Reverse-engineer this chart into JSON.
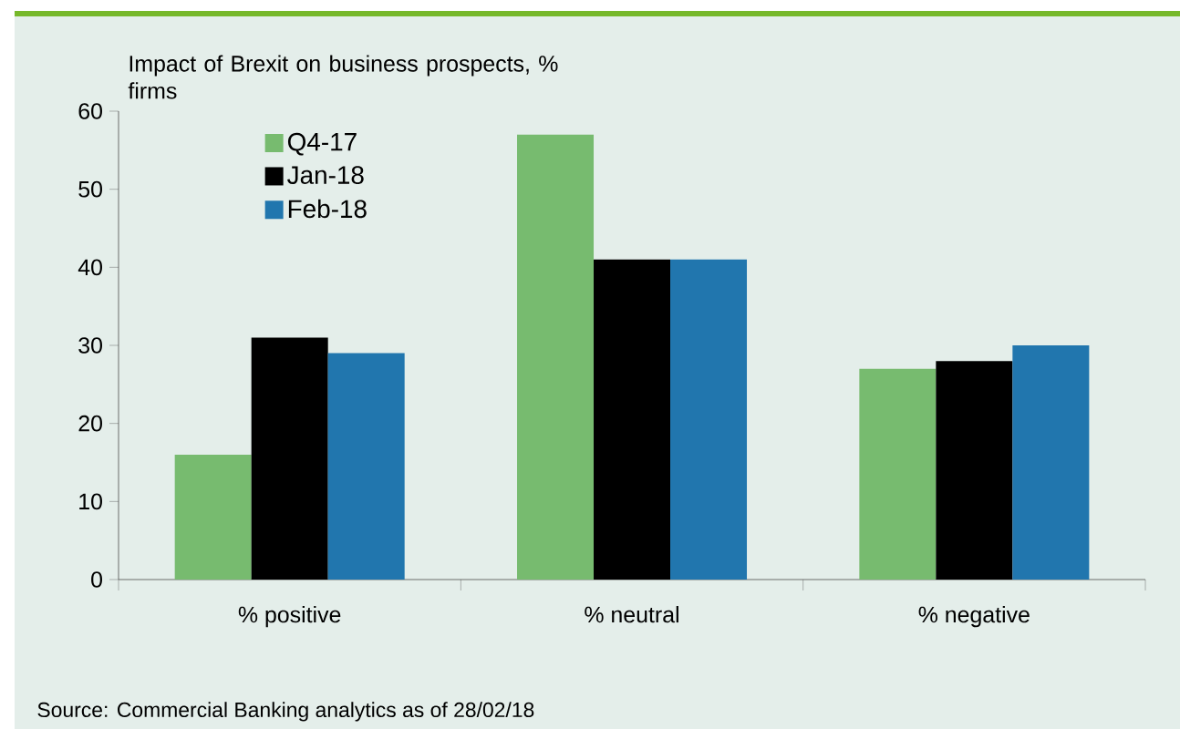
{
  "chart_data": {
    "type": "bar",
    "title": "Impact of Brexit on business prospects, % firms",
    "categories": [
      "% positive",
      "% neutral",
      "% negative"
    ],
    "series": [
      {
        "name": "Q4-17",
        "color": "#77bb6f",
        "values": [
          16,
          57,
          27
        ]
      },
      {
        "name": "Jan-18",
        "color": "#000000",
        "values": [
          31,
          41,
          28
        ]
      },
      {
        "name": "Feb-18",
        "color": "#2176ae",
        "values": [
          29,
          41,
          30
        ]
      }
    ],
    "ylim": [
      0,
      60
    ],
    "yticks": [
      0,
      10,
      20,
      30,
      40,
      50,
      60
    ],
    "grid": false,
    "legend": "top left",
    "annotations": [
      "Source: Commercial Banking analytics as of 28/02/18"
    ]
  }
}
